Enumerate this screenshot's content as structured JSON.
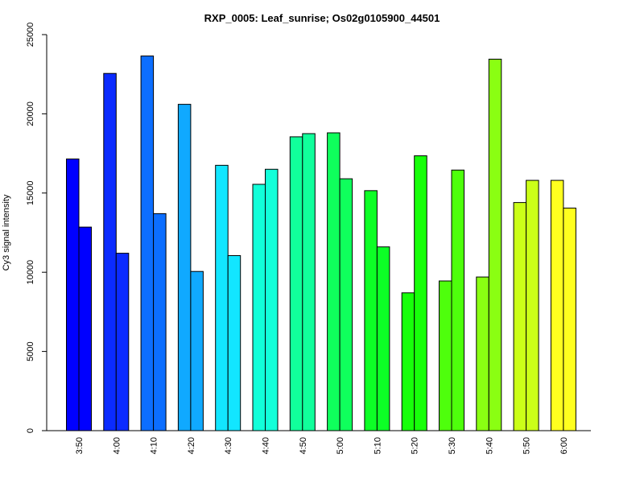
{
  "chart_data": {
    "type": "bar",
    "title": "RXP_0005: Leaf_sunrise; Os02g0105900_44501",
    "xlabel": "",
    "ylabel": "Cy3 signal intensity",
    "ylim": [
      0,
      25000
    ],
    "yticks": [
      "0",
      "5000",
      "10000",
      "15000",
      "20000",
      "25000"
    ],
    "grid": false,
    "legend": "none",
    "categories": [
      "3:50",
      "4:00",
      "4:10",
      "4:20",
      "4:30",
      "4:40",
      "4:50",
      "5:00",
      "5:10",
      "5:20",
      "5:30",
      "5:40",
      "5:50",
      "6:00"
    ],
    "series": [
      {
        "values": [
          17150,
          22550,
          23650,
          20600,
          16750,
          15550,
          18550,
          18800,
          15150,
          8700,
          9450,
          9700,
          14400,
          15800
        ]
      },
      {
        "values": [
          12850,
          11200,
          13700,
          10050,
          11050,
          16500,
          18750,
          15900,
          11600,
          17350,
          16450,
          23450,
          15800,
          14050
        ]
      }
    ],
    "colors": [
      "#0000ff",
      "#0b2bff",
      "#0c6eff",
      "#10a9ff",
      "#12e6ff",
      "#12ffd9",
      "#11ff9b",
      "#0fff5c",
      "#0dff26",
      "#17ff0a",
      "#4eff0c",
      "#8aff12",
      "#cbff18",
      "#ffff1f"
    ]
  }
}
